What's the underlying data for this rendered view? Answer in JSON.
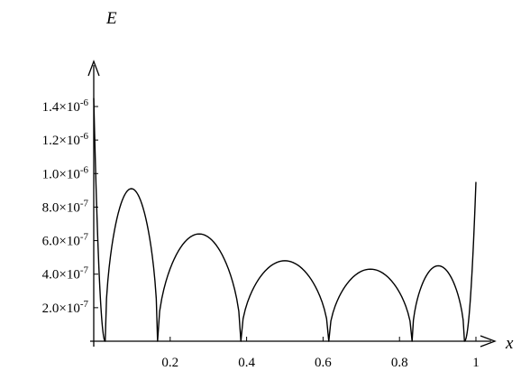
{
  "chart_data": {
    "type": "line",
    "xlabel": "x",
    "ylabel": "E",
    "xlim": [
      0,
      1.03
    ],
    "ylim": [
      0,
      1.5e-06
    ],
    "x_ticks": [
      {
        "value": 0.2,
        "label": "0.2"
      },
      {
        "value": 0.4,
        "label": "0.4"
      },
      {
        "value": 0.6,
        "label": "0.6"
      },
      {
        "value": 0.8,
        "label": "0.8"
      },
      {
        "value": 1.0,
        "label": "1"
      }
    ],
    "y_ticks": [
      {
        "value": 2e-07,
        "mantissa": "2.0×10",
        "exp": "-7"
      },
      {
        "value": 4e-07,
        "mantissa": "4.0×10",
        "exp": "-7"
      },
      {
        "value": 6e-07,
        "mantissa": "6.0×10",
        "exp": "-7"
      },
      {
        "value": 8e-07,
        "mantissa": "8.0×10",
        "exp": "-7"
      },
      {
        "value": 1e-06,
        "mantissa": "1.0×10",
        "exp": "-6"
      },
      {
        "value": 1.2e-06,
        "mantissa": "1.2×10",
        "exp": "-6"
      },
      {
        "value": 1.4e-06,
        "mantissa": "1.4×10",
        "exp": "-6"
      }
    ],
    "grid": false,
    "line_color": "#000000",
    "series": [
      {
        "zeros": [
          0.03,
          0.167,
          0.385,
          0.615,
          0.833,
          0.97
        ],
        "peaks": [
          {
            "x": 0.095,
            "y": 9.1e-07
          },
          {
            "x": 0.272,
            "y": 6.4e-07
          },
          {
            "x": 0.5,
            "y": 4.8e-07
          },
          {
            "x": 0.728,
            "y": 4.3e-07
          },
          {
            "x": 0.905,
            "y": 4.5e-07
          }
        ],
        "left_end": {
          "x": 0.0,
          "y": 1.45e-06
        },
        "right_end": {
          "x": 1.0,
          "y": 9.5e-07
        }
      }
    ]
  }
}
